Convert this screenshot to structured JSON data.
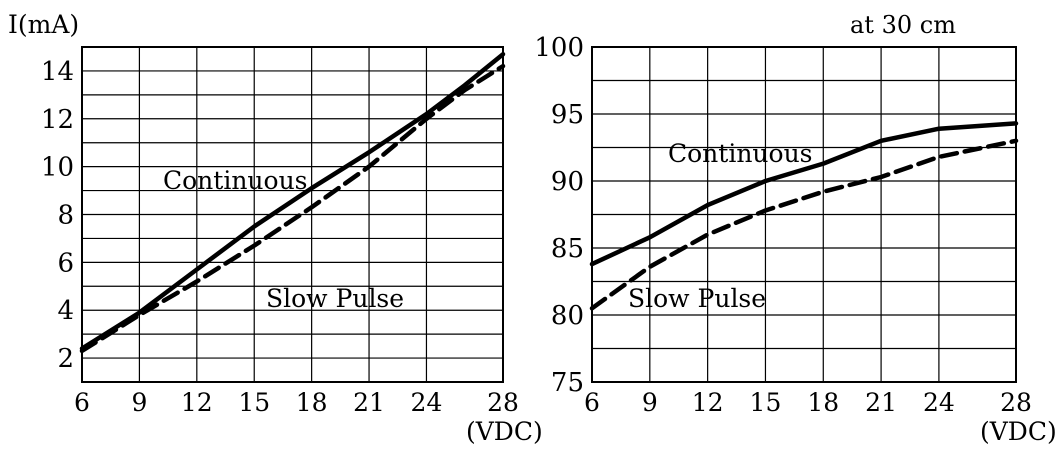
{
  "chart_data": [
    {
      "type": "line",
      "ylabel": "I(mA)",
      "xlabel": "(VDC)",
      "x_ticks": [
        "6",
        "9",
        "12",
        "15",
        "18",
        "21",
        "24",
        "28"
      ],
      "y_ticks": [
        "2",
        "4",
        "6",
        "8",
        "10",
        "12",
        "14"
      ],
      "xlim": [
        6,
        28
      ],
      "ylim": [
        1,
        15
      ],
      "grid": true,
      "series": [
        {
          "name": "Continuous",
          "style": "solid",
          "x": [
            6,
            9,
            12,
            15,
            18,
            21,
            24,
            26,
            28
          ],
          "y": [
            2.4,
            3.9,
            5.7,
            7.5,
            9.1,
            10.6,
            12.2,
            13.4,
            14.7
          ]
        },
        {
          "name": "Slow Pulse",
          "style": "dashed",
          "x": [
            6,
            9,
            12,
            15,
            18,
            21,
            24,
            26,
            28
          ],
          "y": [
            2.3,
            3.8,
            5.2,
            6.7,
            8.3,
            10.0,
            12.0,
            13.2,
            14.2
          ]
        }
      ]
    },
    {
      "type": "line",
      "title": "at 30 cm",
      "xlabel": "(VDC)",
      "x_ticks": [
        "6",
        "9",
        "12",
        "15",
        "18",
        "21",
        "24",
        "28"
      ],
      "y_ticks": [
        "75",
        "80",
        "85",
        "90",
        "95",
        "100"
      ],
      "xlim": [
        6,
        28
      ],
      "ylim": [
        75,
        100
      ],
      "grid": true,
      "series": [
        {
          "name": "Continuous",
          "style": "solid",
          "x": [
            6,
            9,
            12,
            15,
            18,
            21,
            24,
            28
          ],
          "y": [
            83.8,
            85.8,
            88.2,
            90.0,
            91.3,
            93.0,
            93.9,
            94.3
          ]
        },
        {
          "name": "Slow Pulse",
          "style": "dashed",
          "x": [
            6,
            9,
            12,
            15,
            18,
            21,
            24,
            28
          ],
          "y": [
            80.5,
            83.6,
            86.0,
            87.8,
            89.2,
            90.3,
            91.8,
            93.0
          ]
        }
      ]
    }
  ]
}
